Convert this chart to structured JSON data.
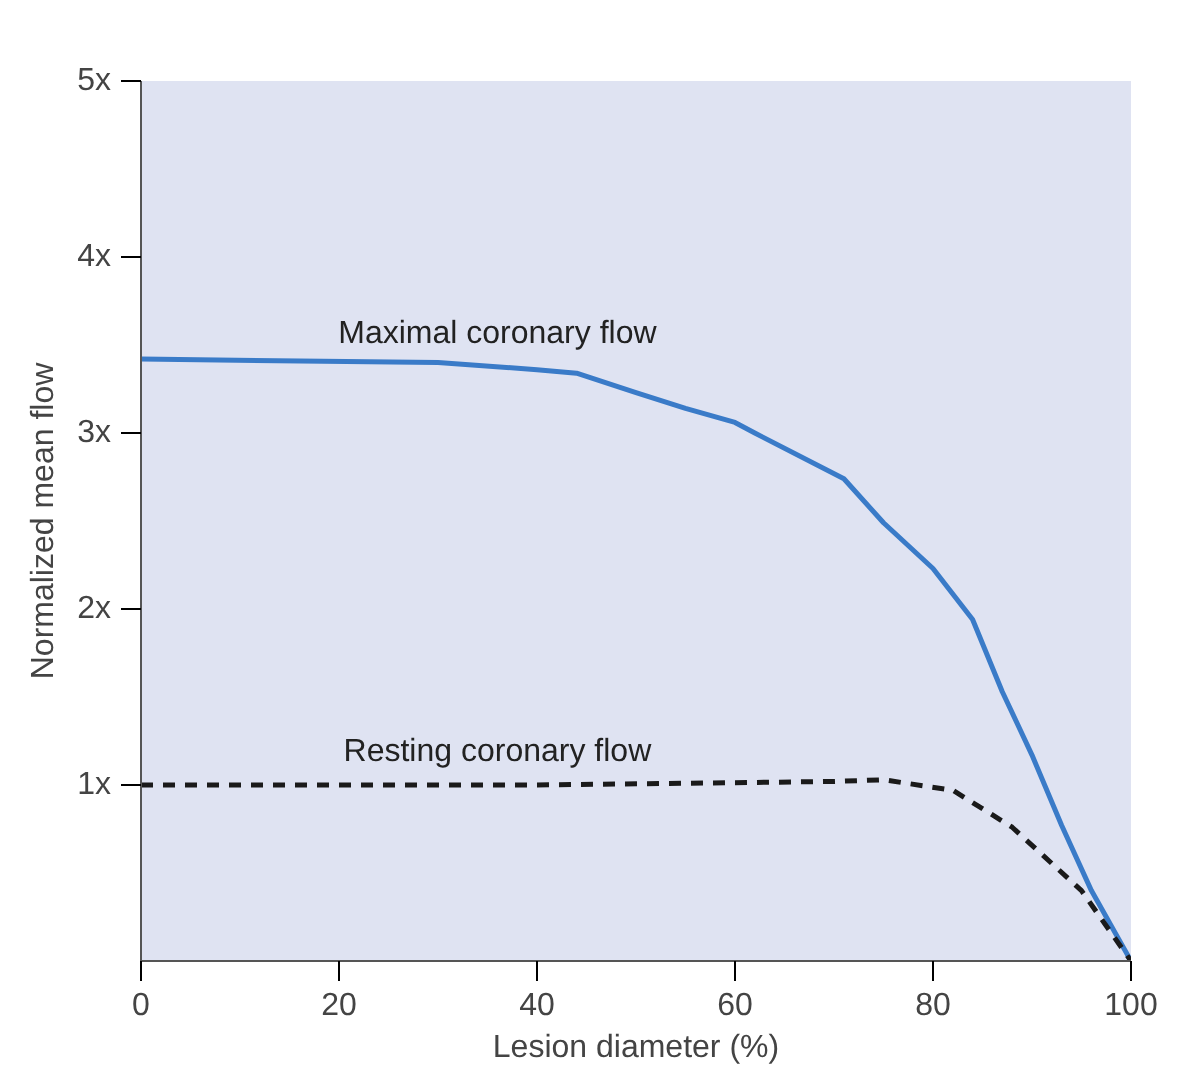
{
  "chart_data": {
    "type": "line",
    "xlabel": "Lesion diameter (%)",
    "ylabel": "Normalized mean flow",
    "xlim": [
      0,
      100
    ],
    "ylim": [
      0,
      5
    ],
    "xticks": [
      0,
      20,
      40,
      60,
      80,
      100
    ],
    "yticks": [
      {
        "value": 1,
        "label": "1x"
      },
      {
        "value": 2,
        "label": "2x"
      },
      {
        "value": 3,
        "label": "3x"
      },
      {
        "value": 4,
        "label": "4x"
      },
      {
        "value": 5,
        "label": "5x"
      }
    ],
    "grid": false,
    "series": [
      {
        "name": "Maximal coronary flow",
        "color": "#3a7bc8",
        "line_style": "solid",
        "x": [
          0,
          30,
          40,
          44,
          50,
          55,
          60,
          62,
          71,
          75,
          80,
          84,
          87,
          90,
          93,
          96,
          100
        ],
        "values": [
          3.42,
          3.4,
          3.36,
          3.34,
          3.23,
          3.14,
          3.06,
          3.0,
          2.74,
          2.49,
          2.23,
          1.94,
          1.53,
          1.17,
          0.77,
          0.4,
          0
        ]
      },
      {
        "name": "Resting coronary flow",
        "color": "#1a1a1a",
        "line_style": "dashed",
        "x": [
          0,
          40,
          70,
          75,
          82,
          88,
          95,
          100
        ],
        "values": [
          1.0,
          1.0,
          1.02,
          1.03,
          0.97,
          0.76,
          0.4,
          0
        ]
      }
    ]
  }
}
